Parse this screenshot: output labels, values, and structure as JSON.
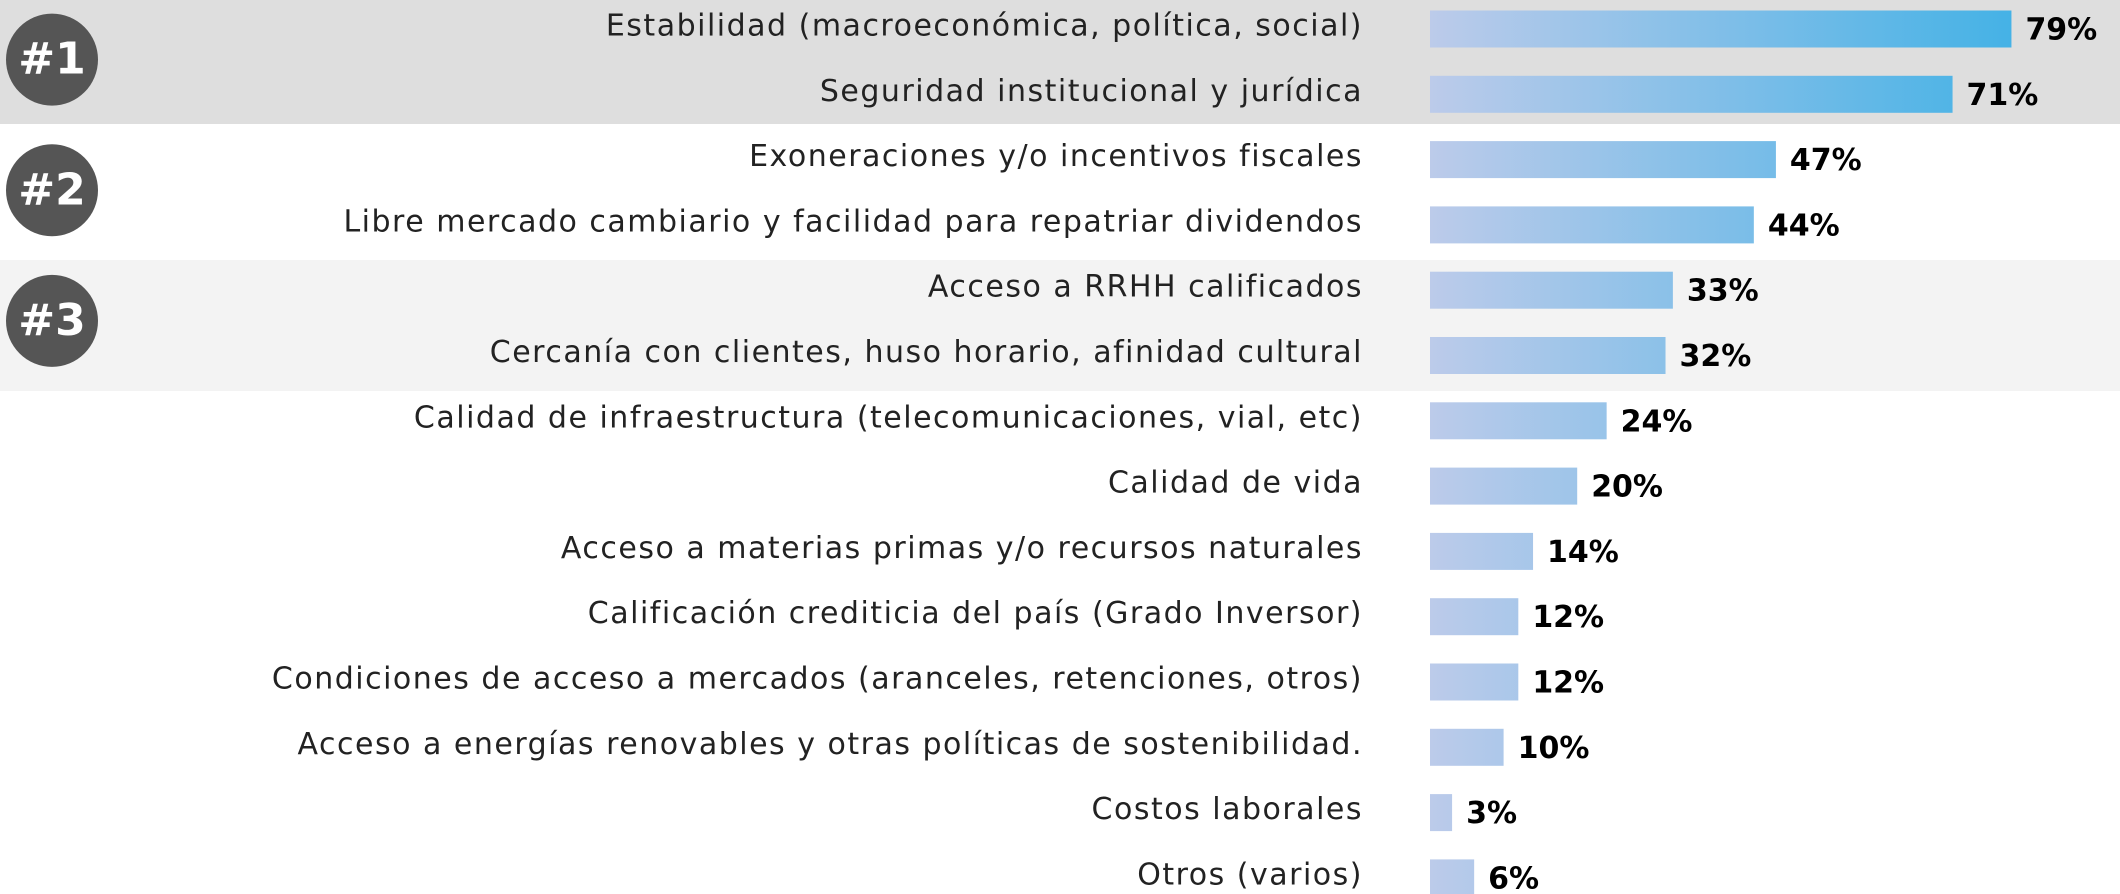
{
  "chart_data": {
    "type": "barh",
    "ranks": [
      "#1",
      "#2",
      "#3"
    ],
    "categories": [
      "Estabilidad (macroeconómica, política, social)",
      "Seguridad institucional y jurídica",
      "Exoneraciones y/o incentivos fiscales",
      "Libre mercado cambiario y facilidad para repatriar dividendos",
      "Acceso a RRHH calificados",
      "Cercanía con clientes, huso horario, afinidad cultural",
      "Calidad de infraestructura (telecomunicaciones, vial, etc)",
      "Calidad de vida",
      "Acceso a materias primas y/o recursos naturales",
      "Calificación crediticia del país (Grado Inversor)",
      "Condiciones de acceso a mercados (aranceles, retenciones, otros)",
      "Acceso a energías renovables y otras políticas de sostenibilidad.",
      "Costos laborales",
      "Otros (varios)"
    ],
    "values": [
      79,
      71,
      47,
      44,
      33,
      32,
      24,
      20,
      14,
      12,
      12,
      10,
      3,
      6
    ],
    "value_labels": [
      "79%",
      "71%",
      "47%",
      "44%",
      "33%",
      "32%",
      "24%",
      "20%",
      "14%",
      "12%",
      "12%",
      "10%",
      "3%",
      "6%"
    ],
    "colors": [
      "#bccbea",
      "#45b2e6"
    ]
  }
}
